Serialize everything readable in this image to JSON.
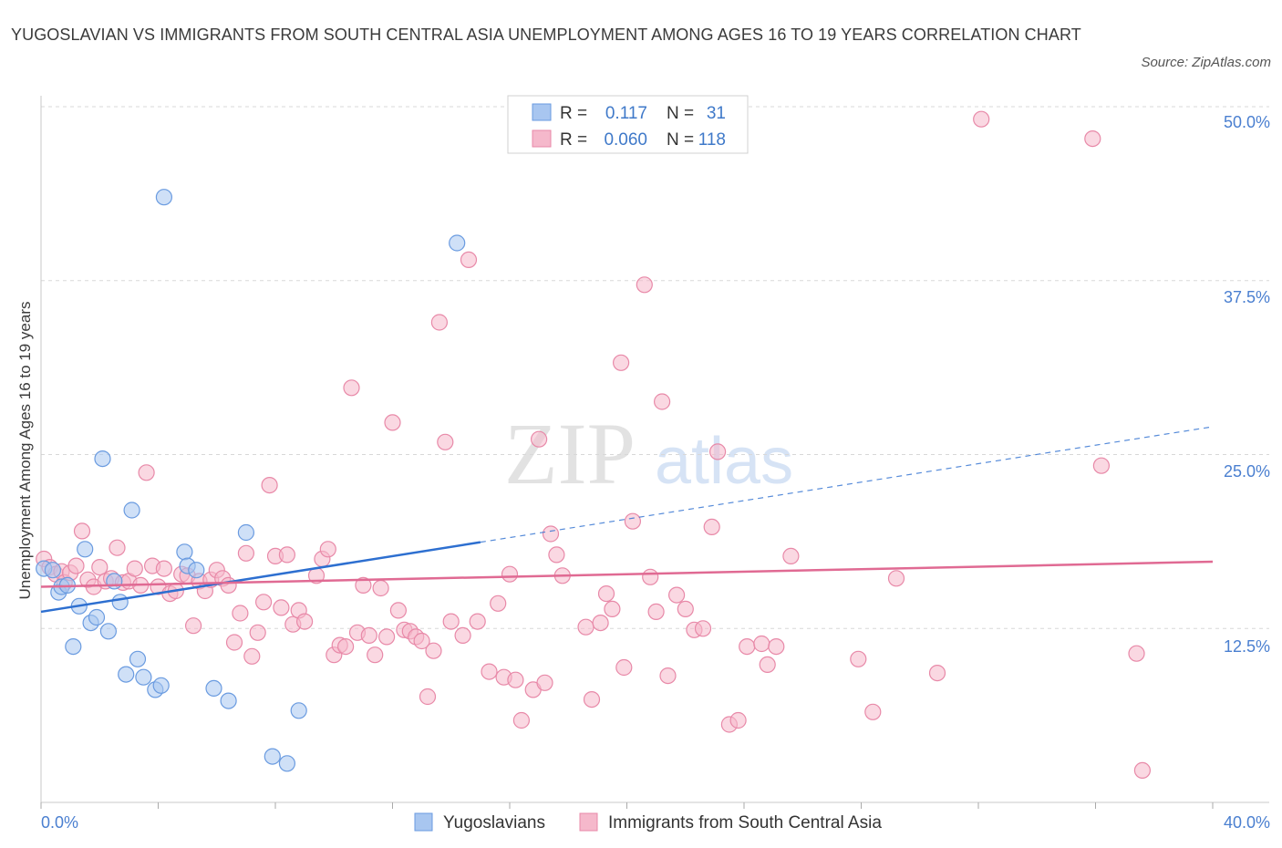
{
  "title": "YUGOSLAVIAN VS IMMIGRANTS FROM SOUTH CENTRAL ASIA UNEMPLOYMENT AMONG AGES 16 TO 19 YEARS CORRELATION CHART",
  "source": "Source: ZipAtlas.com",
  "watermark": {
    "zip": "ZIP",
    "atlas": "atlas"
  },
  "colors": {
    "blue_fill": "#a8c6f0",
    "blue_stroke": "#6a9be0",
    "blue_line": "#2d6fd0",
    "pink_fill": "#f5b8cb",
    "pink_stroke": "#e889a8",
    "pink_line": "#e06a93",
    "tick_color": "#4a7fd0",
    "grid": "#d8d8d8"
  },
  "legend": {
    "rows": [
      {
        "r_label": "R =",
        "r_value": "0.117",
        "n_label": "N =",
        "n_value": "31",
        "series": "blue"
      },
      {
        "r_label": "R =",
        "r_value": "0.060",
        "n_label": "N =",
        "n_value": "118",
        "series": "pink"
      }
    ]
  },
  "chart_data": {
    "type": "scatter",
    "title": "YUGOSLAVIAN VS IMMIGRANTS FROM SOUTH CENTRAL ASIA UNEMPLOYMENT AMONG AGES 16 TO 19 YEARS CORRELATION CHART",
    "xlabel": "",
    "ylabel": "Unemployment Among Ages 16 to 19 years",
    "xlim": [
      0,
      40
    ],
    "ylim": [
      0,
      50
    ],
    "x_tick_labels": [
      "0.0%",
      "40.0%"
    ],
    "y_ticks": [
      12.5,
      25.0,
      37.5,
      50.0
    ],
    "y_tick_labels": [
      "12.5%",
      "25.0%",
      "37.5%",
      "50.0%"
    ],
    "grid": true,
    "legend_position": "top-center",
    "series": [
      {
        "name": "Yugoslavians",
        "color": "blue",
        "R": 0.117,
        "N": 31,
        "trend": {
          "x0": 0,
          "y0": 13.7,
          "x1": 15,
          "y1": 18.7,
          "dashed_to_x": 40,
          "dashed_to_y": 27.0
        },
        "points": [
          [
            0.1,
            16.8
          ],
          [
            0.4,
            16.7
          ],
          [
            0.6,
            15.1
          ],
          [
            0.7,
            15.5
          ],
          [
            0.9,
            15.6
          ],
          [
            1.1,
            11.2
          ],
          [
            1.3,
            14.1
          ],
          [
            1.5,
            18.2
          ],
          [
            1.7,
            12.9
          ],
          [
            1.9,
            13.3
          ],
          [
            2.1,
            24.7
          ],
          [
            2.3,
            12.3
          ],
          [
            2.5,
            15.9
          ],
          [
            2.7,
            14.4
          ],
          [
            2.9,
            9.2
          ],
          [
            3.1,
            21.0
          ],
          [
            3.3,
            10.3
          ],
          [
            3.5,
            9.0
          ],
          [
            3.9,
            8.1
          ],
          [
            4.1,
            8.4
          ],
          [
            4.2,
            43.5
          ],
          [
            4.9,
            18.0
          ],
          [
            5.0,
            17.0
          ],
          [
            5.3,
            16.7
          ],
          [
            5.9,
            8.2
          ],
          [
            6.4,
            7.3
          ],
          [
            7.0,
            19.4
          ],
          [
            7.9,
            3.3
          ],
          [
            8.4,
            2.8
          ],
          [
            8.8,
            6.6
          ],
          [
            14.2,
            40.2
          ]
        ]
      },
      {
        "name": "Immigrants from South Central Asia",
        "color": "pink",
        "R": 0.06,
        "N": 118,
        "trend": {
          "x0": 0,
          "y0": 15.5,
          "x1": 40,
          "y1": 17.3
        },
        "points": [
          [
            0.1,
            17.5
          ],
          [
            0.3,
            16.9
          ],
          [
            0.5,
            16.4
          ],
          [
            0.7,
            16.6
          ],
          [
            0.8,
            15.8
          ],
          [
            1.0,
            16.5
          ],
          [
            1.2,
            17.0
          ],
          [
            1.4,
            19.5
          ],
          [
            1.6,
            16.0
          ],
          [
            1.8,
            15.5
          ],
          [
            2.0,
            16.9
          ],
          [
            2.2,
            15.9
          ],
          [
            2.4,
            16.1
          ],
          [
            2.6,
            18.3
          ],
          [
            2.8,
            15.8
          ],
          [
            3.0,
            15.9
          ],
          [
            3.2,
            16.8
          ],
          [
            3.4,
            15.6
          ],
          [
            3.6,
            23.7
          ],
          [
            3.8,
            17.0
          ],
          [
            4.0,
            15.5
          ],
          [
            4.2,
            16.8
          ],
          [
            4.4,
            15.0
          ],
          [
            4.6,
            15.2
          ],
          [
            4.8,
            16.4
          ],
          [
            5.0,
            16.3
          ],
          [
            5.2,
            12.7
          ],
          [
            5.4,
            15.9
          ],
          [
            5.6,
            15.2
          ],
          [
            5.8,
            16.0
          ],
          [
            6.0,
            16.7
          ],
          [
            6.2,
            16.1
          ],
          [
            6.4,
            15.6
          ],
          [
            6.6,
            11.5
          ],
          [
            6.8,
            13.6
          ],
          [
            7.0,
            17.9
          ],
          [
            7.2,
            10.5
          ],
          [
            7.4,
            12.2
          ],
          [
            7.6,
            14.4
          ],
          [
            7.8,
            22.8
          ],
          [
            8.0,
            17.7
          ],
          [
            8.2,
            14.0
          ],
          [
            8.4,
            17.8
          ],
          [
            8.6,
            12.8
          ],
          [
            8.8,
            13.8
          ],
          [
            9.0,
            13.0
          ],
          [
            9.4,
            16.3
          ],
          [
            9.6,
            17.5
          ],
          [
            9.8,
            18.2
          ],
          [
            10.0,
            10.6
          ],
          [
            10.2,
            11.3
          ],
          [
            10.4,
            11.2
          ],
          [
            10.6,
            29.8
          ],
          [
            10.8,
            12.2
          ],
          [
            11.0,
            15.6
          ],
          [
            11.2,
            12.0
          ],
          [
            11.4,
            10.6
          ],
          [
            11.6,
            15.4
          ],
          [
            11.8,
            11.9
          ],
          [
            12.0,
            27.3
          ],
          [
            12.2,
            13.8
          ],
          [
            12.4,
            12.4
          ],
          [
            12.6,
            12.3
          ],
          [
            12.8,
            11.9
          ],
          [
            13.0,
            11.6
          ],
          [
            13.2,
            7.6
          ],
          [
            13.4,
            10.9
          ],
          [
            13.6,
            34.5
          ],
          [
            13.8,
            25.9
          ],
          [
            14.0,
            13.0
          ],
          [
            14.4,
            12.0
          ],
          [
            14.6,
            39.0
          ],
          [
            14.9,
            13.0
          ],
          [
            15.3,
            9.4
          ],
          [
            15.6,
            14.3
          ],
          [
            15.8,
            9.0
          ],
          [
            16.0,
            16.4
          ],
          [
            16.2,
            8.8
          ],
          [
            16.4,
            5.9
          ],
          [
            16.8,
            8.1
          ],
          [
            17.0,
            26.1
          ],
          [
            17.2,
            8.6
          ],
          [
            17.4,
            19.3
          ],
          [
            17.6,
            17.8
          ],
          [
            17.8,
            16.3
          ],
          [
            18.6,
            12.6
          ],
          [
            18.8,
            7.4
          ],
          [
            19.1,
            12.9
          ],
          [
            19.3,
            15.0
          ],
          [
            19.5,
            13.9
          ],
          [
            19.8,
            31.6
          ],
          [
            19.9,
            9.7
          ],
          [
            20.2,
            20.2
          ],
          [
            20.6,
            37.2
          ],
          [
            20.8,
            16.2
          ],
          [
            21.0,
            13.7
          ],
          [
            21.2,
            28.8
          ],
          [
            21.4,
            9.1
          ],
          [
            21.7,
            14.9
          ],
          [
            22.0,
            13.9
          ],
          [
            22.3,
            12.4
          ],
          [
            22.6,
            12.5
          ],
          [
            22.9,
            19.8
          ],
          [
            23.1,
            25.2
          ],
          [
            23.5,
            5.6
          ],
          [
            23.8,
            5.9
          ],
          [
            24.1,
            11.2
          ],
          [
            24.6,
            11.4
          ],
          [
            24.8,
            9.9
          ],
          [
            25.1,
            11.2
          ],
          [
            25.6,
            17.7
          ],
          [
            27.9,
            10.3
          ],
          [
            28.4,
            6.5
          ],
          [
            29.2,
            16.1
          ],
          [
            30.6,
            9.3
          ],
          [
            32.1,
            49.1
          ],
          [
            35.9,
            47.7
          ],
          [
            36.2,
            24.2
          ],
          [
            37.4,
            10.7
          ],
          [
            37.6,
            2.3
          ]
        ]
      }
    ]
  },
  "bottom_legend": {
    "yugoslavians": "Yugoslavians",
    "immigrants": "Immigrants from South Central Asia"
  }
}
